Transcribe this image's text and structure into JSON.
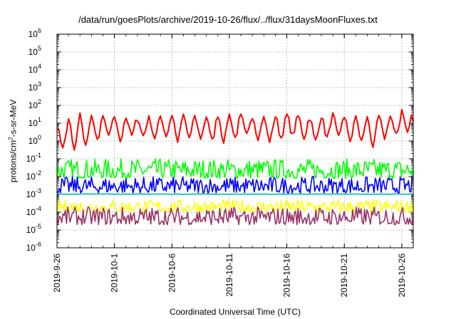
{
  "chart_data": {
    "type": "line",
    "title": "/data/run/goesPlots/archive/2019-10-26/flux/../flux/31daysMoonFluxes.txt",
    "xlabel": "Coordinated Universal Time (UTC)",
    "ylabel": {
      "prefix": "protons/cm",
      "sup": "2",
      "suffix": "-s-sr-MeV"
    },
    "y_scale": "log",
    "ylim": [
      1e-06,
      1000000.0
    ],
    "y_ticks": [
      {
        "value": 1e-06,
        "exp": "-6"
      },
      {
        "value": 1e-05,
        "exp": "-5"
      },
      {
        "value": 0.0001,
        "exp": "-4"
      },
      {
        "value": 0.001,
        "exp": "-3"
      },
      {
        "value": 0.01,
        "exp": "-2"
      },
      {
        "value": 0.1,
        "exp": "-1"
      },
      {
        "value": 1,
        "exp": "0"
      },
      {
        "value": 10,
        "exp": "1"
      },
      {
        "value": 100,
        "exp": "2"
      },
      {
        "value": 1000,
        "exp": "3"
      },
      {
        "value": 10000,
        "exp": "4"
      },
      {
        "value": 100000,
        "exp": "5"
      },
      {
        "value": 1000000,
        "exp": "6"
      }
    ],
    "x_start": "2019-09-26",
    "x_end": "2019-10-27",
    "x_ticks": [
      "2019-9-26",
      "2019-10-1",
      "2019-10-6",
      "2019-10-11",
      "2019-10-16",
      "2019-10-21",
      "2019-10-26"
    ],
    "x_tick_days": [
      0,
      5,
      10,
      15,
      20,
      25,
      30
    ],
    "grid": true,
    "legend": "none",
    "series": [
      {
        "color": "#ff0000",
        "style": "oscillating ~daily",
        "dates": [
          "2019-09-26",
          "2019-09-27",
          "2019-09-28",
          "2019-09-29",
          "2019-09-30",
          "2019-10-01",
          "2019-10-02",
          "2019-10-03",
          "2019-10-04",
          "2019-10-05",
          "2019-10-06",
          "2019-10-07",
          "2019-10-08",
          "2019-10-09",
          "2019-10-10",
          "2019-10-11",
          "2019-10-12",
          "2019-10-13",
          "2019-10-14",
          "2019-10-15",
          "2019-10-16",
          "2019-10-17",
          "2019-10-18",
          "2019-10-19",
          "2019-10-20",
          "2019-10-21",
          "2019-10-22",
          "2019-10-23",
          "2019-10-24",
          "2019-10-25",
          "2019-10-26",
          "2019-10-27"
        ],
        "high": [
          6,
          20,
          30,
          25,
          20,
          25,
          20,
          18,
          20,
          25,
          30,
          25,
          20,
          25,
          30,
          30,
          25,
          25,
          20,
          25,
          30,
          25,
          20,
          25,
          30,
          25,
          20,
          20,
          25,
          25,
          60,
          10
        ],
        "low": [
          0.5,
          0.3,
          0.5,
          1,
          2,
          1,
          2,
          2,
          1.5,
          2,
          1,
          1.5,
          1.5,
          1,
          1,
          1.5,
          2,
          1.5,
          1,
          1.5,
          2,
          1.5,
          1,
          1.5,
          1.5,
          1,
          1,
          0.5,
          1.5,
          2,
          3,
          8
        ]
      },
      {
        "color": "#00ff00",
        "style": "noisy band",
        "low": 0.008,
        "high": 0.1,
        "peaks": [
          0.12,
          0.1,
          0.07
        ]
      },
      {
        "color": "#00bbbb",
        "style": "near-constant",
        "low": 0.0009,
        "high": 0.0012
      },
      {
        "color": "#0000ff",
        "style": "noisy band",
        "low": 0.0012,
        "high": 0.01
      },
      {
        "color": "#ffff00",
        "style": "noisy band",
        "low": 0.0001,
        "high": 0.0005
      },
      {
        "color": "#993366",
        "style": "noisy band",
        "low": 2e-05,
        "high": 0.0002
      }
    ]
  }
}
